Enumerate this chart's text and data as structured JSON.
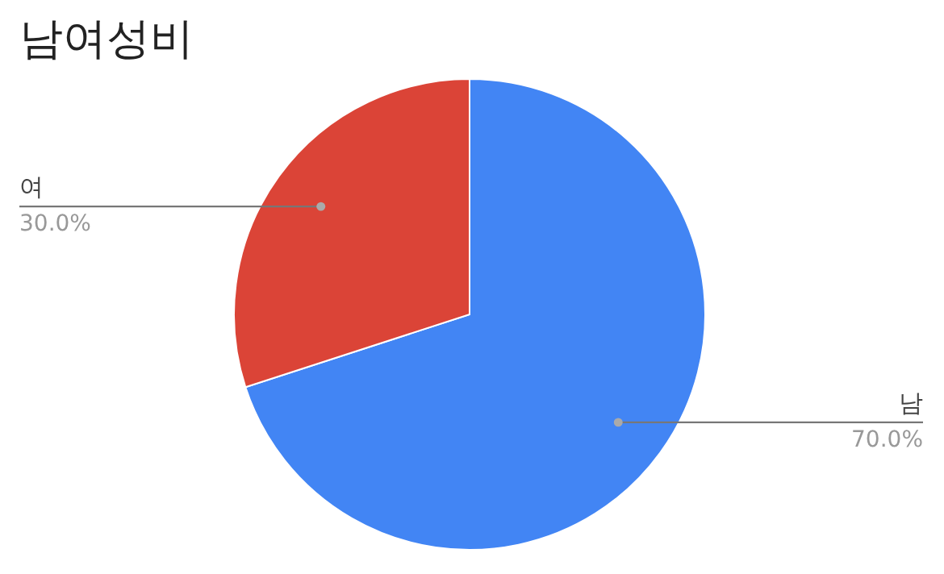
{
  "chart_data": {
    "type": "pie",
    "title": "남여성비",
    "categories": [
      "남",
      "여"
    ],
    "values": [
      70,
      30
    ],
    "colors": [
      "#4285f4",
      "#db4437"
    ],
    "value_labels": [
      "70.0%",
      "30.0%"
    ]
  }
}
